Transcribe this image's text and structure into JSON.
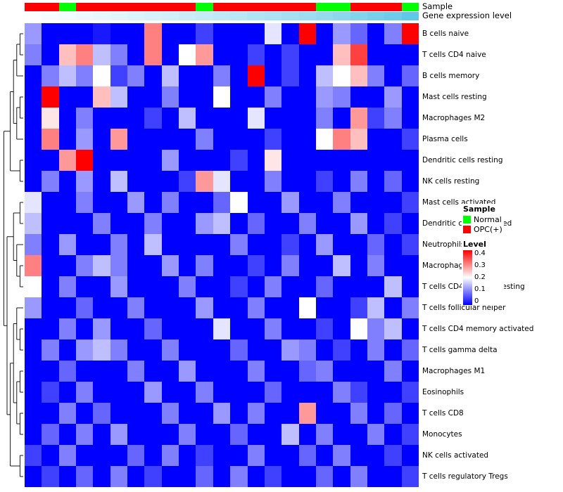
{
  "annotations": {
    "sample_label": "Sample",
    "gene_label": "Gene expression level"
  },
  "legend": {
    "sample_title": "Sample",
    "sample_items": [
      {
        "label": "Normal",
        "color": "#00FF00"
      },
      {
        "label": "OPC(+)",
        "color": "#FF0000"
      }
    ],
    "level_title": "Level",
    "level_ticks": [
      "0.4",
      "0.3",
      "0.2",
      "0.1",
      "0"
    ]
  },
  "colors": {
    "low": "#0000FF",
    "mid": "#FFFFFF",
    "high": "#FF0000",
    "sample_normal": "#00FF00",
    "sample_opc": "#FF0000",
    "gene_low": "#FFFFFF",
    "gene_high": "#5FC8E8"
  },
  "chart_data": {
    "type": "heatmap",
    "title": "",
    "value_range": [
      0,
      0.4
    ],
    "rows": [
      "B cells naive",
      "T cells CD4 naive",
      "B cells memory",
      "Mast cells resting",
      "Macrophages M2",
      "Plasma cells",
      "Dendritic cells resting",
      "NK cells resting",
      "Mast cells activated",
      "Dendritic cells activated",
      "Neutrophils",
      "Macrophages M0",
      "T cells CD4 memory resting",
      "T cells follicular helper",
      "T cells CD4 memory activated",
      "T cells gamma delta",
      "Macrophages M1",
      "Eosinophils",
      "T cells CD8",
      "Monocytes",
      "NK cells activated",
      "T cells regulatory Tregs"
    ],
    "columns_count": 23,
    "sample_annotation": [
      "OPC(+)",
      "OPC(+)",
      "Normal",
      "OPC(+)",
      "OPC(+)",
      "OPC(+)",
      "OPC(+)",
      "OPC(+)",
      "OPC(+)",
      "OPC(+)",
      "Normal",
      "OPC(+)",
      "OPC(+)",
      "OPC(+)",
      "OPC(+)",
      "OPC(+)",
      "OPC(+)",
      "Normal",
      "Normal",
      "OPC(+)",
      "OPC(+)",
      "OPC(+)",
      "Normal"
    ],
    "gene_expression": [
      0.02,
      0.05,
      0.08,
      0.11,
      0.15,
      0.18,
      0.21,
      0.25,
      0.28,
      0.32,
      0.36,
      0.4,
      0.44,
      0.48,
      0.52,
      0.57,
      0.62,
      0.67,
      0.72,
      0.78,
      0.85,
      0.92,
      1
    ],
    "values": [
      [
        0.12,
        0,
        0,
        0,
        0.02,
        0,
        0,
        0.3,
        0,
        0,
        0.05,
        0,
        0,
        0,
        0.18,
        0,
        0.4,
        0,
        0.12,
        0.08,
        0,
        0.1,
        0.4
      ],
      [
        0.1,
        0,
        0.25,
        0.3,
        0.15,
        0.1,
        0,
        0.3,
        0,
        0.2,
        0.28,
        0,
        0,
        0.05,
        0,
        0.05,
        0,
        0,
        0.25,
        0.35,
        0,
        0,
        0
      ],
      [
        0,
        0.1,
        0.15,
        0.1,
        0.2,
        0.05,
        0.1,
        0,
        0.15,
        0,
        0,
        0.1,
        0,
        0.4,
        0,
        0.05,
        0,
        0.15,
        0.2,
        0.25,
        0.1,
        0,
        0.08
      ],
      [
        0,
        0.4,
        0,
        0,
        0.25,
        0.15,
        0,
        0,
        0.1,
        0,
        0,
        0.2,
        0,
        0,
        0.1,
        0,
        0,
        0.12,
        0.1,
        0,
        0,
        0.12,
        0
      ],
      [
        0,
        0.22,
        0,
        0.1,
        0,
        0,
        0,
        0.05,
        0,
        0.15,
        0,
        0,
        0,
        0.18,
        0,
        0,
        0,
        0.1,
        0,
        0.28,
        0.05,
        0.1,
        0
      ],
      [
        0,
        0.3,
        0,
        0.12,
        0,
        0.28,
        0,
        0,
        0,
        0,
        0.1,
        0,
        0,
        0,
        0.05,
        0,
        0,
        0.2,
        0.3,
        0.25,
        0,
        0,
        0.05
      ],
      [
        0,
        0,
        0.28,
        0.4,
        0,
        0,
        0,
        0,
        0.12,
        0,
        0,
        0,
        0.05,
        0,
        0.22,
        0,
        0,
        0,
        0,
        0,
        0,
        0,
        0
      ],
      [
        0,
        0.1,
        0,
        0.12,
        0,
        0.15,
        0,
        0,
        0,
        0.05,
        0.28,
        0.18,
        0,
        0,
        0.1,
        0,
        0,
        0.05,
        0,
        0.1,
        0,
        0.08,
        0
      ],
      [
        0.18,
        0,
        0,
        0.1,
        0,
        0,
        0.12,
        0,
        0.1,
        0,
        0,
        0.08,
        0.2,
        0,
        0,
        0.12,
        0,
        0,
        0.1,
        0,
        0,
        0,
        0.05
      ],
      [
        0.15,
        0,
        0,
        0,
        0.1,
        0,
        0,
        0.1,
        0,
        0,
        0.12,
        0.15,
        0,
        0.08,
        0,
        0,
        0.1,
        0,
        0,
        0.12,
        0,
        0.05,
        0
      ],
      [
        0.1,
        0,
        0.12,
        0,
        0,
        0.1,
        0,
        0.15,
        0,
        0,
        0,
        0,
        0.1,
        0,
        0,
        0.05,
        0,
        0.12,
        0,
        0,
        0.08,
        0,
        0.05
      ],
      [
        0.3,
        0,
        0,
        0.1,
        0.15,
        0.1,
        0,
        0,
        0.12,
        0,
        0.1,
        0,
        0,
        0.05,
        0,
        0.1,
        0,
        0,
        0.15,
        0,
        0.1,
        0,
        0
      ],
      [
        0.2,
        0,
        0.1,
        0,
        0,
        0.12,
        0,
        0,
        0,
        0.1,
        0,
        0,
        0.05,
        0,
        0.1,
        0,
        0,
        0.08,
        0,
        0,
        0,
        0.15,
        0
      ],
      [
        0.12,
        0,
        0,
        0.08,
        0,
        0,
        0.1,
        0,
        0,
        0,
        0.12,
        0,
        0,
        0.1,
        0,
        0,
        0.2,
        0,
        0,
        0.05,
        0.15,
        0,
        0.1
      ],
      [
        0,
        0,
        0.1,
        0,
        0.12,
        0,
        0,
        0.08,
        0,
        0,
        0,
        0.18,
        0,
        0,
        0.1,
        0,
        0,
        0.05,
        0,
        0.2,
        0.1,
        0.15,
        0
      ],
      [
        0,
        0.1,
        0,
        0.12,
        0.15,
        0.1,
        0,
        0,
        0.1,
        0,
        0,
        0,
        0.08,
        0,
        0,
        0.12,
        0.1,
        0,
        0.05,
        0,
        0.1,
        0,
        0.08
      ],
      [
        0,
        0,
        0.08,
        0,
        0,
        0,
        0.1,
        0,
        0,
        0.12,
        0,
        0,
        0,
        0.1,
        0,
        0,
        0.08,
        0.1,
        0,
        0,
        0,
        0.1,
        0
      ],
      [
        0,
        0.05,
        0,
        0.1,
        0,
        0,
        0,
        0.12,
        0,
        0,
        0.1,
        0,
        0,
        0,
        0.08,
        0,
        0,
        0,
        0.1,
        0.05,
        0,
        0,
        0.05
      ],
      [
        0,
        0,
        0.1,
        0,
        0.08,
        0,
        0,
        0,
        0.1,
        0,
        0,
        0.12,
        0,
        0.1,
        0,
        0,
        0.28,
        0,
        0,
        0.1,
        0,
        0.08,
        0
      ],
      [
        0,
        0.08,
        0,
        0.1,
        0,
        0.12,
        0,
        0,
        0,
        0.1,
        0,
        0,
        0.08,
        0,
        0,
        0.15,
        0,
        0.1,
        0,
        0,
        0.1,
        0,
        0.05
      ],
      [
        0.05,
        0,
        0.1,
        0,
        0,
        0,
        0.08,
        0,
        0.1,
        0,
        0.05,
        0,
        0,
        0.1,
        0,
        0,
        0.08,
        0,
        0.1,
        0,
        0,
        0.05,
        0
      ],
      [
        0,
        0.05,
        0,
        0.08,
        0,
        0.1,
        0,
        0.05,
        0,
        0,
        0.08,
        0,
        0.1,
        0,
        0.05,
        0,
        0,
        0.08,
        0,
        0.1,
        0,
        0,
        0.05
      ]
    ],
    "row_dendrogram": [
      [
        [
          [
            [
              0,
              1
            ],
            2
          ],
          [
            [
              3,
              4
            ],
            5
          ]
        ],
        [
          6,
          7
        ]
      ],
      [
        [
          [
            8,
            9
          ],
          [
            10,
            [
              11,
              12
            ]
          ]
        ],
        [
          [
            [
              13,
              [
                14,
                15
              ]
            ],
            [
              [
                16,
                17
              ],
              [
                18,
                19
              ]
            ]
          ],
          [
            20,
            21
          ]
        ]
      ]
    ]
  }
}
